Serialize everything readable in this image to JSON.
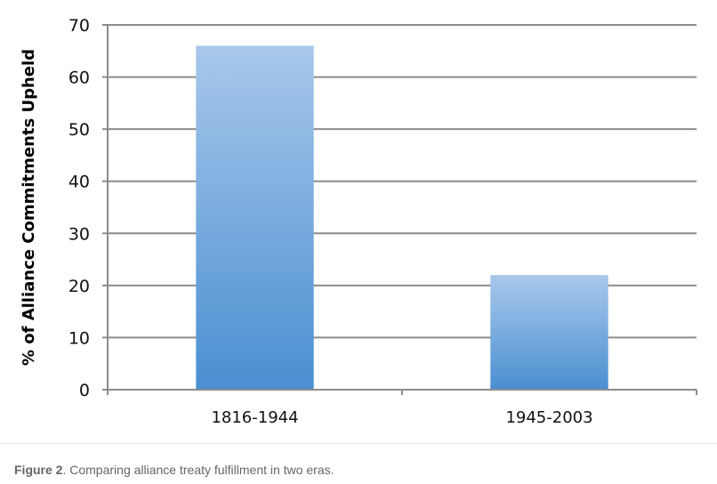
{
  "chart_data": {
    "type": "bar",
    "categories": [
      "1816-1944",
      "1945-2003"
    ],
    "values": [
      66,
      22
    ],
    "title": "",
    "xlabel": "",
    "ylabel": "% of Alliance Commitments Upheld",
    "ylim": [
      0,
      70
    ],
    "yticks": [
      0,
      10,
      20,
      30,
      40,
      50,
      60,
      70
    ],
    "grid": true,
    "legend": "none",
    "bar_color_top": "#a9c8eb",
    "bar_color_bottom": "#4a8fd1",
    "grid_color": "#8c8c8c"
  },
  "caption": {
    "label": "Figure 2",
    "text": ". Comparing alliance treaty fulfillment in two eras."
  }
}
